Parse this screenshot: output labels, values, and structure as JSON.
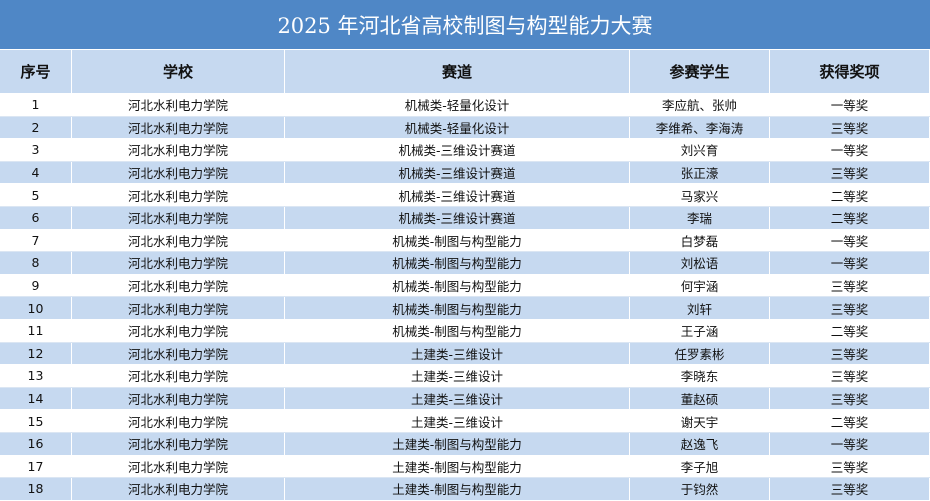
{
  "title": "2025 年河北省高校制图与构型能力大赛",
  "table": {
    "header": [
      "序号",
      "学校",
      "赛道",
      "参赛学生",
      "获得奖项"
    ],
    "rows": [
      [
        "1",
        "河北水利电力学院",
        "机械类-轻量化设计",
        "李应航、张帅",
        "一等奖"
      ],
      [
        "2",
        "河北水利电力学院",
        "机械类-轻量化设计",
        "李维希、李海涛",
        "三等奖"
      ],
      [
        "3",
        "河北水利电力学院",
        "机械类-三维设计赛道",
        "刘兴育",
        "一等奖"
      ],
      [
        "4",
        "河北水利电力学院",
        "机械类-三维设计赛道",
        "张正濠",
        "三等奖"
      ],
      [
        "5",
        "河北水利电力学院",
        "机械类-三维设计赛道",
        "马家兴",
        "二等奖"
      ],
      [
        "6",
        "河北水利电力学院",
        "机械类-三维设计赛道",
        "李瑞",
        "二等奖"
      ],
      [
        "7",
        "河北水利电力学院",
        "机械类-制图与构型能力",
        "白梦磊",
        "一等奖"
      ],
      [
        "8",
        "河北水利电力学院",
        "机械类-制图与构型能力",
        "刘松语",
        "一等奖"
      ],
      [
        "9",
        "河北水利电力学院",
        "机械类-制图与构型能力",
        "何宇涵",
        "三等奖"
      ],
      [
        "10",
        "河北水利电力学院",
        "机械类-制图与构型能力",
        "刘轩",
        "三等奖"
      ],
      [
        "11",
        "河北水利电力学院",
        "机械类-制图与构型能力",
        "王子涵",
        "二等奖"
      ],
      [
        "12",
        "河北水利电力学院",
        "土建类-三维设计",
        "任罗素彬",
        "三等奖"
      ],
      [
        "13",
        "河北水利电力学院",
        "土建类-三维设计",
        "李晓东",
        "三等奖"
      ],
      [
        "14",
        "河北水利电力学院",
        "土建类-三维设计",
        "董赵硕",
        "三等奖"
      ],
      [
        "15",
        "河北水利电力学院",
        "土建类-三维设计",
        "谢天宇",
        "二等奖"
      ],
      [
        "16",
        "河北水利电力学院",
        "土建类-制图与构型能力",
        "赵逸飞",
        "一等奖"
      ],
      [
        "17",
        "河北水利电力学院",
        "土建类-制图与构型能力",
        "李子旭",
        "三等奖"
      ],
      [
        "18",
        "河北水利电力学院",
        "土建类-制图与构型能力",
        "于钧然",
        "三等奖"
      ]
    ]
  }
}
